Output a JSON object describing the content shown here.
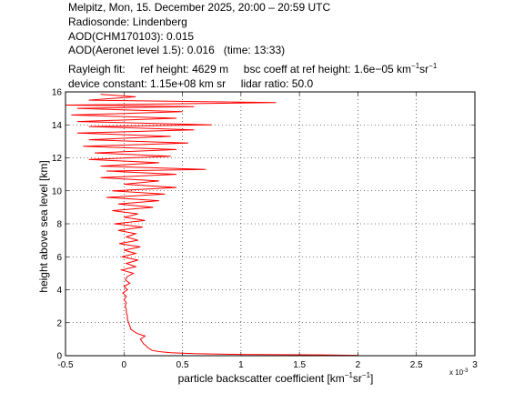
{
  "header": {
    "line1": "Melpitz, Mon, 15. December 2025, 20:00 – 20:59 UTC",
    "line2": "Radiosonde: Lindenberg",
    "line3": "AOD(CHM170103): 0.015",
    "line4": "AOD(Aeronet level 1.5): 0.016   (time: 13:33)",
    "rayleigh_label": "Rayleigh fit:",
    "ref_height": "ref height: 4629 m",
    "bsc_coeff_prefix": "bsc coeff at ref height: 1.6e−05 km",
    "bsc_coeff_unit_mid": "sr",
    "device_constant": "device constant: 1.15e+08 km sr",
    "lidar_ratio": "lidar ratio: 50.0",
    "sup_minus1": "−1"
  },
  "axes": {
    "xlabel_prefix": "particle backscatter coefficient [km",
    "xlabel_mid": "sr",
    "xlabel_suffix": "]",
    "ylabel": "height above sea level [km]",
    "x_exponent_base": "x 10",
    "x_exponent_power": "-3"
  },
  "chart_data": {
    "type": "line",
    "xlim": [
      -0.5,
      3
    ],
    "ylim": [
      0,
      16
    ],
    "xticks": [
      -0.5,
      0,
      0.5,
      1,
      1.5,
      2,
      2.5,
      3
    ],
    "yticks": [
      0,
      2,
      4,
      6,
      8,
      10,
      12,
      14,
      16
    ],
    "x_scale_factor": "1e-3",
    "grid": true,
    "line_color": "#ff0000",
    "series": [
      {
        "values_note": "backscatter (x10^-3 km^-1 sr^-1) vs height (km)",
        "points": [
          [
            2.0,
            0.02
          ],
          [
            1.7,
            0.05
          ],
          [
            1.0,
            0.08
          ],
          [
            0.6,
            0.12
          ],
          [
            0.4,
            0.18
          ],
          [
            0.3,
            0.25
          ],
          [
            0.24,
            0.32
          ],
          [
            0.22,
            0.42
          ],
          [
            0.2,
            0.5
          ],
          [
            0.19,
            0.6
          ],
          [
            0.17,
            0.7
          ],
          [
            0.16,
            0.8
          ],
          [
            0.15,
            0.9
          ],
          [
            0.14,
            1.0
          ],
          [
            0.16,
            1.1
          ],
          [
            0.18,
            1.2
          ],
          [
            0.13,
            1.3
          ],
          [
            0.1,
            1.4
          ],
          [
            0.08,
            1.5
          ],
          [
            0.06,
            1.6
          ],
          [
            0.05,
            1.8
          ],
          [
            0.04,
            2.0
          ],
          [
            0.03,
            2.2
          ],
          [
            0.03,
            2.4
          ],
          [
            0.02,
            2.6
          ],
          [
            0.02,
            2.8
          ],
          [
            0.01,
            3.0
          ],
          [
            0.02,
            3.2
          ],
          [
            0.0,
            3.4
          ],
          [
            0.02,
            3.6
          ],
          [
            -0.01,
            3.8
          ],
          [
            0.03,
            4.0
          ],
          [
            0.0,
            4.2
          ],
          [
            0.05,
            4.4
          ],
          [
            0.01,
            4.6
          ],
          [
            0.03,
            4.8
          ],
          [
            0.08,
            5.0
          ],
          [
            -0.02,
            5.2
          ],
          [
            0.1,
            5.4
          ],
          [
            0.02,
            5.6
          ],
          [
            0.12,
            5.8
          ],
          [
            -0.02,
            6.0
          ],
          [
            0.1,
            6.2
          ],
          [
            0.0,
            6.4
          ],
          [
            0.14,
            6.6
          ],
          [
            -0.04,
            6.8
          ],
          [
            0.12,
            7.0
          ],
          [
            0.02,
            7.2
          ],
          [
            0.1,
            7.4
          ],
          [
            -0.05,
            7.6
          ],
          [
            0.16,
            7.8
          ],
          [
            -0.08,
            8.0
          ],
          [
            0.18,
            8.2
          ],
          [
            0.0,
            8.4
          ],
          [
            0.12,
            8.6
          ],
          [
            -0.1,
            8.8
          ],
          [
            0.25,
            9.0
          ],
          [
            -0.05,
            9.2
          ],
          [
            0.3,
            9.4
          ],
          [
            -0.15,
            9.6
          ],
          [
            0.35,
            9.8
          ],
          [
            -0.1,
            10.0
          ],
          [
            0.45,
            10.2
          ],
          [
            0.0,
            10.4
          ],
          [
            0.3,
            10.6
          ],
          [
            -0.2,
            10.8
          ],
          [
            0.45,
            11.0
          ],
          [
            -0.15,
            11.2
          ],
          [
            0.7,
            11.3
          ],
          [
            -0.2,
            11.5
          ],
          [
            0.3,
            11.7
          ],
          [
            -0.3,
            11.9
          ],
          [
            0.4,
            12.1
          ],
          [
            -0.25,
            12.3
          ],
          [
            0.45,
            12.5
          ],
          [
            -0.35,
            12.7
          ],
          [
            0.55,
            12.9
          ],
          [
            -0.3,
            13.1
          ],
          [
            0.4,
            13.3
          ],
          [
            -0.4,
            13.5
          ],
          [
            0.6,
            13.7
          ],
          [
            -0.3,
            13.9
          ],
          [
            0.75,
            14.0
          ],
          [
            -0.4,
            14.2
          ],
          [
            0.45,
            14.4
          ],
          [
            -0.45,
            14.6
          ],
          [
            0.5,
            14.8
          ],
          [
            -0.4,
            15.0
          ],
          [
            0.6,
            15.1
          ],
          [
            -0.5,
            15.2
          ],
          [
            1.3,
            15.35
          ],
          [
            -0.3,
            15.5
          ],
          [
            0.1,
            15.7
          ],
          [
            -0.2,
            15.85
          ]
        ]
      }
    ]
  }
}
